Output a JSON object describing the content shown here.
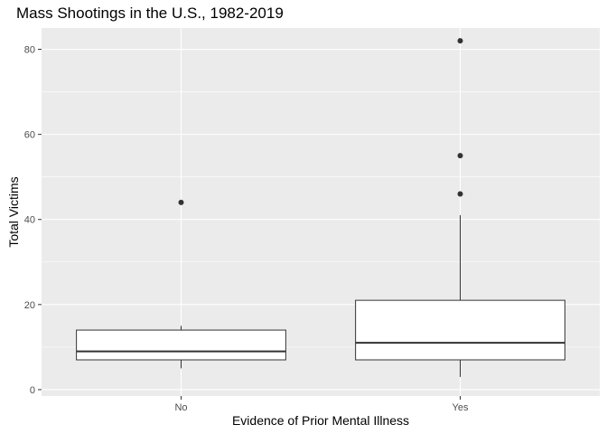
{
  "chart_data": {
    "type": "boxplot",
    "title": "Mass Shootings in the U.S., 1982-2019",
    "xlabel": "Evidence of Prior Mental Illness",
    "ylabel": "Total Victims",
    "ylim": [
      -1.5,
      85
    ],
    "yticks": [
      0,
      20,
      40,
      60,
      80
    ],
    "grid": true,
    "categories": [
      "No",
      "Yes"
    ],
    "boxes": [
      {
        "category": "No",
        "whisker_low": 5,
        "q1": 7,
        "median": 9,
        "q3": 14,
        "whisker_high": 15,
        "outliers": [
          44
        ]
      },
      {
        "category": "Yes",
        "whisker_low": 3,
        "q1": 7,
        "median": 11,
        "q3": 21,
        "whisker_high": 41,
        "outliers": [
          46,
          55,
          82
        ]
      }
    ],
    "colors": {
      "panel": "#ebebeb",
      "grid_major": "#ffffff",
      "box_fill": "#ffffff",
      "box_line": "#333333"
    }
  }
}
